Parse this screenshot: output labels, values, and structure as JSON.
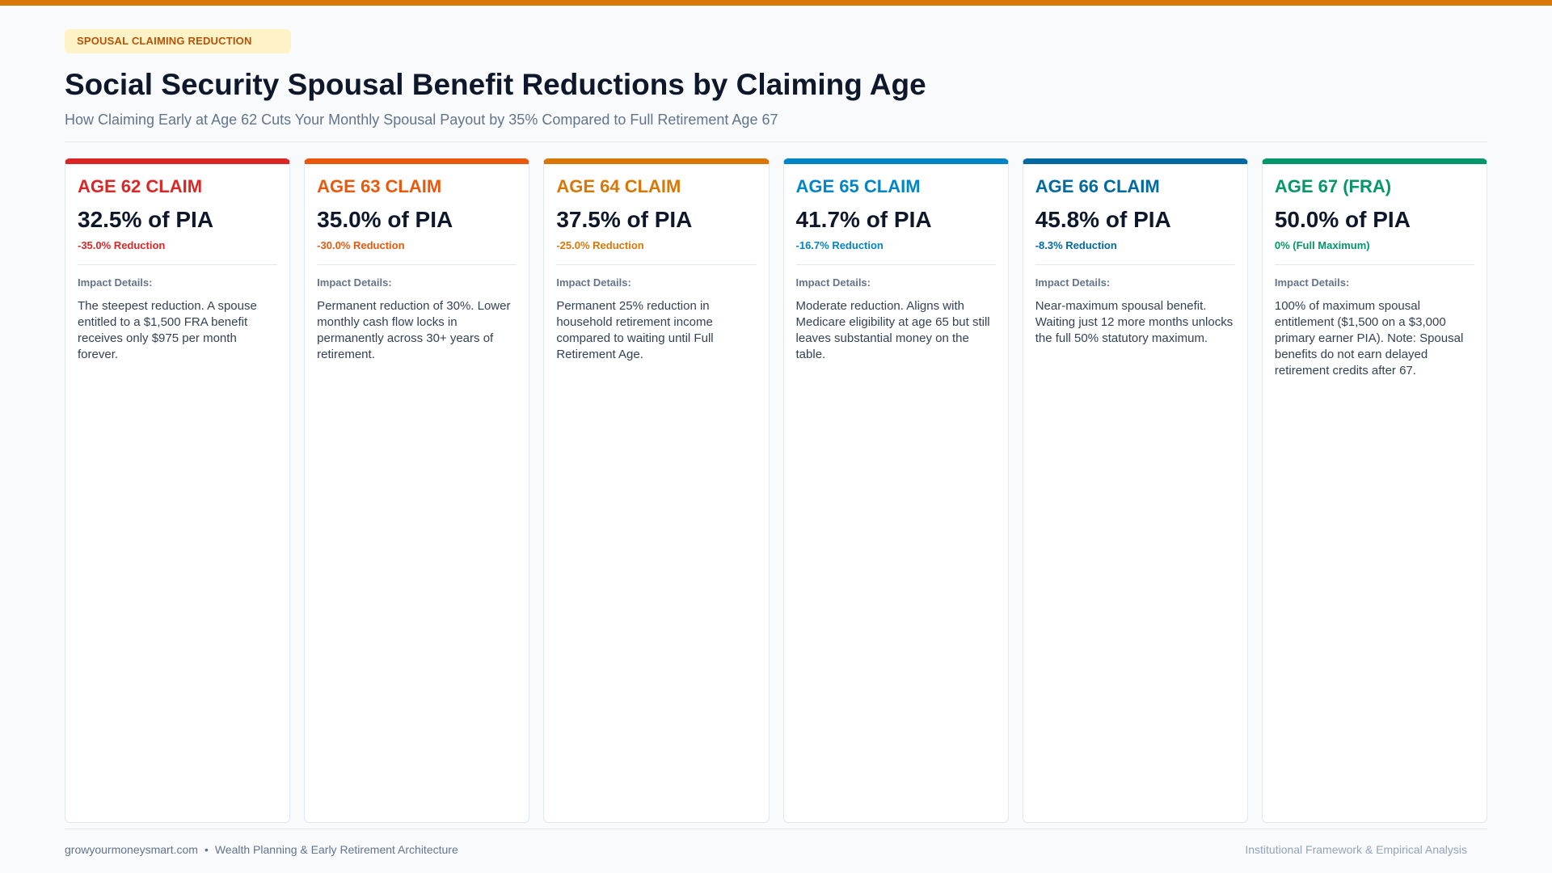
{
  "header": {
    "tag": "SPOUSAL CLAIMING REDUCTION",
    "title": "Social Security Spousal Benefit Reductions by Claiming Age",
    "subtitle": "How Claiming Early at Age 62 Cuts Your Monthly Spousal Payout by 35% Compared to Full Retirement Age 67",
    "accent_color": "#d97706"
  },
  "cards": [
    {
      "title": "AGE 62 CLAIM",
      "value": "32.5% of PIA",
      "reduction": "-35.0% Reduction",
      "impact_label": "Impact Details:",
      "impact_text": "The steepest reduction. A spouse entitled to a $1,500 FRA benefit receives only $975 per month forever.",
      "color": "#dc2626"
    },
    {
      "title": "AGE 63 CLAIM",
      "value": "35.0% of PIA",
      "reduction": "-30.0% Reduction",
      "impact_label": "Impact Details:",
      "impact_text": "Permanent reduction of 30%. Lower monthly cash flow locks in permanently across 30+ years of retirement.",
      "color": "#ea580c"
    },
    {
      "title": "AGE 64 CLAIM",
      "value": "37.5% of PIA",
      "reduction": "-25.0% Reduction",
      "impact_label": "Impact Details:",
      "impact_text": "Permanent 25% reduction in household retirement income compared to waiting until Full Retirement Age.",
      "color": "#d97706"
    },
    {
      "title": "AGE 65 CLAIM",
      "value": "41.7% of PIA",
      "reduction": "-16.7% Reduction",
      "impact_label": "Impact Details:",
      "impact_text": "Moderate reduction. Aligns with Medicare eligibility at age 65 but still leaves substantial money on the table.",
      "color": "#0284c7"
    },
    {
      "title": "AGE 66 CLAIM",
      "value": "45.8% of PIA",
      "reduction": "-8.3% Reduction",
      "impact_label": "Impact Details:",
      "impact_text": "Near-maximum spousal benefit. Waiting just 12 more months unlocks the full 50% statutory maximum.",
      "color": "#0369a1"
    },
    {
      "title": "AGE 67 (FRA)",
      "value": "50.0% of PIA",
      "reduction": "0% (Full Maximum)",
      "impact_label": "Impact Details:",
      "impact_text": "100% of maximum spousal entitlement ($1,500 on a $3,000 primary earner PIA). Note: Spousal benefits do not earn delayed retirement credits after 67.",
      "color": "#059669"
    }
  ],
  "footer": {
    "site": "growyourmoneysmart.com",
    "separator": "•",
    "tagline": "Wealth Planning & Early Retirement Architecture",
    "right_text": "Institutional Framework & Empirical Analysis"
  }
}
